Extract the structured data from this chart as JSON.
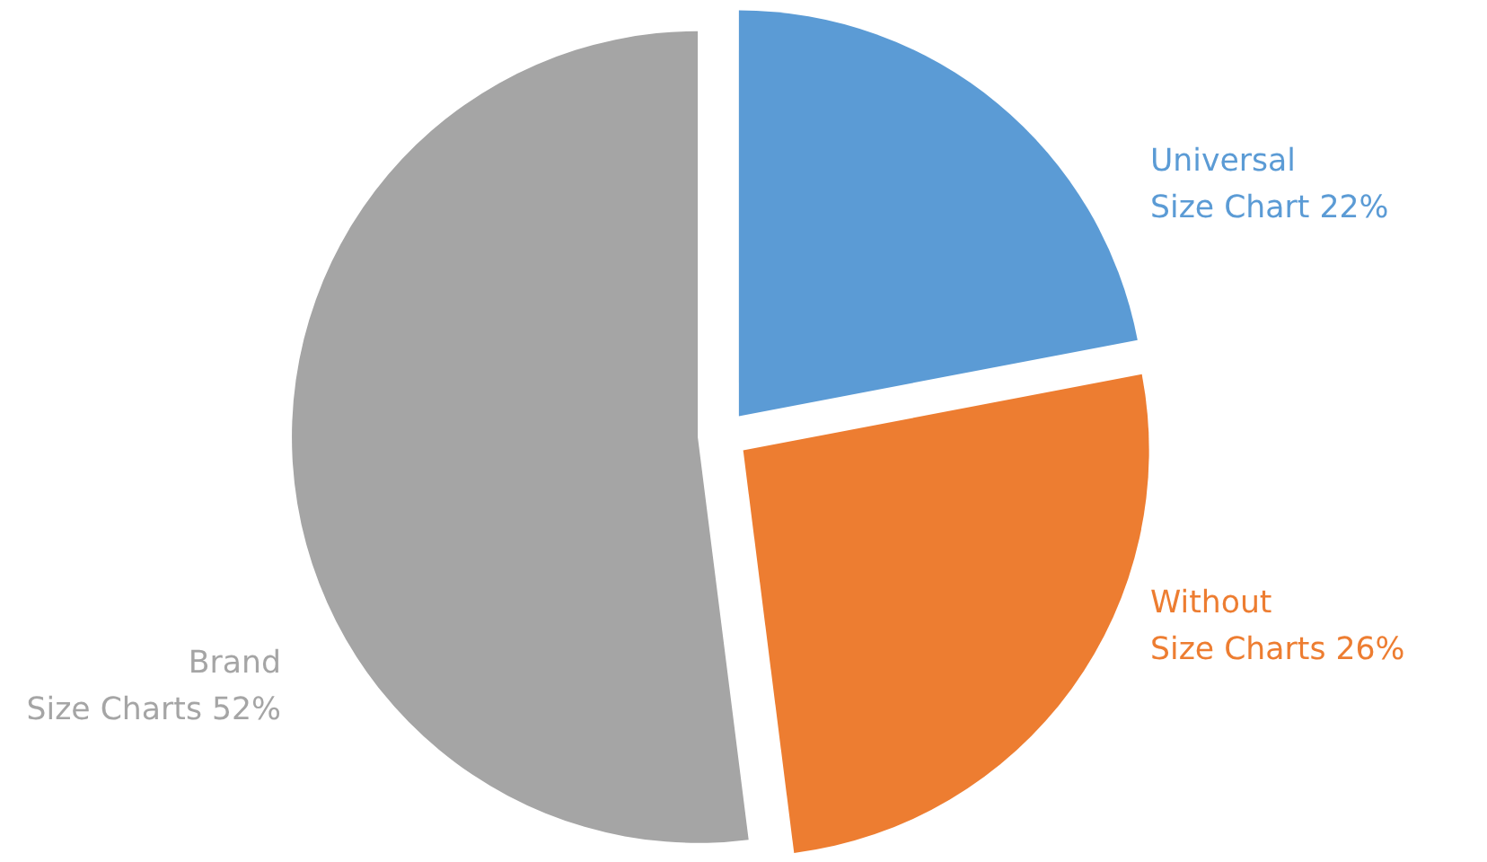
{
  "chart_data": {
    "type": "pie",
    "categories": [
      "Universal Size Chart",
      "Without Size Charts",
      "Brand Size Charts"
    ],
    "values": [
      22,
      26,
      52
    ],
    "colors": [
      "#5b9bd5",
      "#ed7d31",
      "#a5a5a5"
    ],
    "value_labels": [
      "22%",
      "26%",
      "52%"
    ]
  }
}
